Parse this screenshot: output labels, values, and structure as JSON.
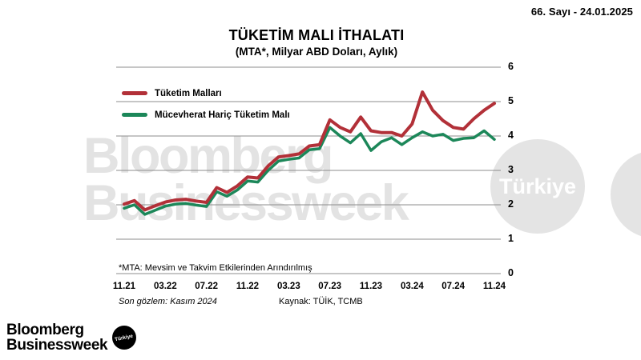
{
  "header": {
    "issue": "66. Sayı - 24.01.2025"
  },
  "chart": {
    "title": "TÜKETİM MALI İTHALATI",
    "subtitle": "(MTA*, Milyar ABD Doları, Aylık)"
  },
  "legend": [
    {
      "label": "Tüketim Malları",
      "color": "#b23038"
    },
    {
      "label": "Mücevherat Hariç Tüketim Malı",
      "color": "#1c8759"
    }
  ],
  "notes": {
    "footnote": "*MTA: Mevsim ve Takvim Etkilerinden Arındırılmış",
    "observation": "Son gözlem: Kasım 2024",
    "source": "Kaynak: TÜİK, TCMB"
  },
  "watermark": {
    "line1": "Bloomberg",
    "line2": "Businessweek",
    "circle_label": "Türkiye"
  },
  "footer": {
    "line1": "Bloomberg",
    "line2": "Businessweek",
    "badge": "Türkiye"
  },
  "chart_data": {
    "type": "line",
    "title": "TÜKETİM MALI İTHALATI (MTA*, Milyar ABD Doları, Aylık)",
    "ylim": [
      0,
      6
    ],
    "y_ticks": [
      0,
      1,
      2,
      3,
      4,
      5,
      6
    ],
    "grid": "horizontal",
    "legend_position": "top-left",
    "x_tick_labels": [
      "11.21",
      "03.22",
      "07.22",
      "11.22",
      "03.23",
      "07.23",
      "11.23",
      "03.24",
      "07.24",
      "11.24"
    ],
    "x": [
      "11.21",
      "12.21",
      "01.22",
      "02.22",
      "03.22",
      "04.22",
      "05.22",
      "06.22",
      "07.22",
      "08.22",
      "09.22",
      "10.22",
      "11.22",
      "12.22",
      "01.23",
      "02.23",
      "03.23",
      "04.23",
      "05.23",
      "06.23",
      "07.23",
      "08.23",
      "09.23",
      "10.23",
      "11.23",
      "12.23",
      "01.24",
      "02.24",
      "03.24",
      "04.24",
      "05.24",
      "06.24",
      "07.24",
      "08.24",
      "09.24",
      "10.24",
      "11.24"
    ],
    "series": [
      {
        "name": "Tüketim Malları",
        "color": "#b23038",
        "values": [
          2.02,
          2.12,
          1.85,
          1.97,
          2.08,
          2.14,
          2.16,
          2.11,
          2.07,
          2.5,
          2.36,
          2.55,
          2.81,
          2.78,
          3.13,
          3.39,
          3.43,
          3.48,
          3.71,
          3.75,
          4.47,
          4.25,
          4.12,
          4.55,
          4.15,
          4.1,
          4.1,
          4.0,
          4.35,
          5.28,
          4.75,
          4.45,
          4.25,
          4.2,
          4.5,
          4.75,
          4.95
        ]
      },
      {
        "name": "Mücevherat Hariç Tüketim Malı",
        "color": "#1c8759",
        "values": [
          1.9,
          2.0,
          1.72,
          1.84,
          1.96,
          2.02,
          2.04,
          1.99,
          1.95,
          2.38,
          2.25,
          2.43,
          2.69,
          2.66,
          3.0,
          3.27,
          3.32,
          3.36,
          3.6,
          3.63,
          4.25,
          4.0,
          3.8,
          4.07,
          3.58,
          3.83,
          3.95,
          3.75,
          3.95,
          4.12,
          4.0,
          4.05,
          3.87,
          3.93,
          3.95,
          4.15,
          3.9
        ]
      }
    ]
  }
}
